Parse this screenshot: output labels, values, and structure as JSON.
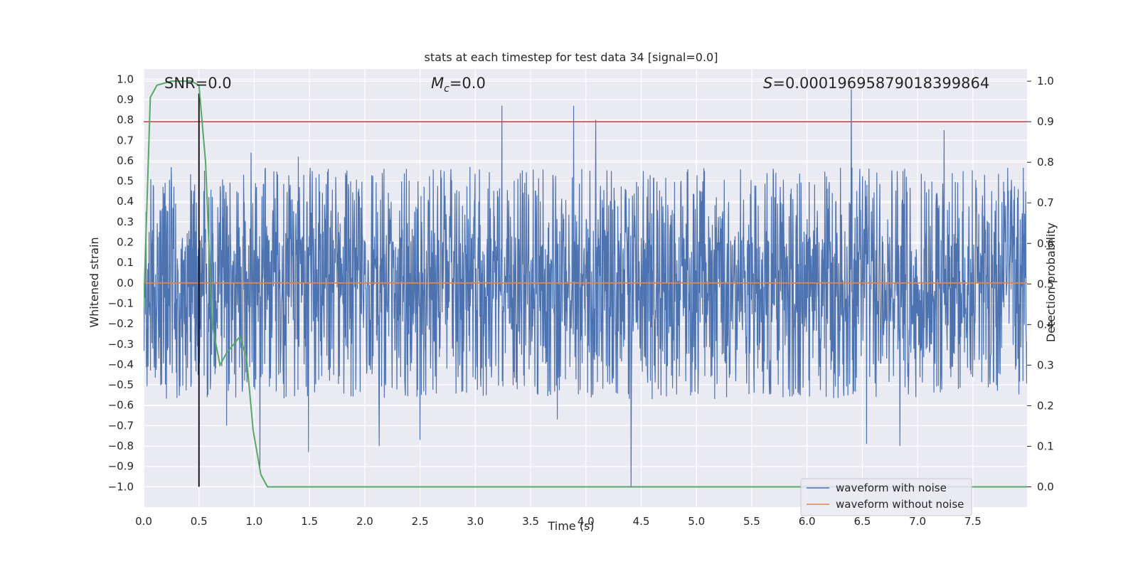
{
  "chart_data": {
    "type": "line",
    "title": "stats at each timestep for test data 34 [signal=0.0]",
    "xlabel": "Time (s)",
    "ylabel_left": "Whitened strain",
    "ylabel_right": "Detection probability",
    "xlim": [
      0.0,
      7.99
    ],
    "ylim_left": [
      -1.1,
      1.05
    ],
    "ylim_right": [
      -0.05,
      1.03
    ],
    "x_ticks": [
      "0.0",
      "0.5",
      "1.0",
      "1.5",
      "2.0",
      "2.5",
      "3.0",
      "3.5",
      "4.0",
      "4.5",
      "5.0",
      "5.5",
      "6.0",
      "6.5",
      "7.0",
      "7.5"
    ],
    "y_ticks_left": [
      "1.0",
      "0.9",
      "0.8",
      "0.7",
      "0.6",
      "0.5",
      "0.4",
      "0.3",
      "0.2",
      "0.1",
      "0.0",
      "−0.1",
      "−0.2",
      "−0.3",
      "−0.4",
      "−0.5",
      "−0.6",
      "−0.7",
      "−0.8",
      "−0.9",
      "−1.0"
    ],
    "y_ticks_right": [
      "0.0",
      "0.1",
      "0.2",
      "0.3",
      "0.4",
      "0.5",
      "0.6",
      "0.7",
      "0.8",
      "0.9",
      "1.0"
    ],
    "grid": true,
    "annotations": {
      "snr": "SNR=0.0",
      "mc_symbol": "M",
      "mc_sub": "c",
      "mc_value": "=0.0",
      "s_symbol": "S",
      "s_value": "=0.00019695879018399864"
    },
    "series": [
      {
        "name": "waveform with noise",
        "color": "#4c72b0",
        "axis": "left",
        "description": "dense noise trace, typical amplitude ±0.45, sampled to render",
        "x_range": [
          0.0,
          7.99
        ],
        "n_samples": 2600,
        "core_amplitude": 0.23,
        "envelope_amplitude": 0.45,
        "spikes": [
          {
            "x": 3.24,
            "y": 0.87
          },
          {
            "x": 3.89,
            "y": 0.87
          },
          {
            "x": 4.09,
            "y": 0.8
          },
          {
            "x": 6.4,
            "y": 0.95
          },
          {
            "x": 7.24,
            "y": 0.75
          },
          {
            "x": 4.41,
            "y": -1.0
          },
          {
            "x": 1.05,
            "y": -0.9
          },
          {
            "x": 1.49,
            "y": -0.83
          },
          {
            "x": 2.13,
            "y": -0.8
          },
          {
            "x": 2.5,
            "y": -0.77
          },
          {
            "x": 6.54,
            "y": -0.79
          },
          {
            "x": 6.84,
            "y": -0.8
          },
          {
            "x": 0.75,
            "y": -0.7
          },
          {
            "x": 3.74,
            "y": -0.67
          },
          {
            "x": 1.4,
            "y": 0.62
          },
          {
            "x": 0.97,
            "y": 0.64
          }
        ]
      },
      {
        "name": "waveform without noise",
        "color": "#dd8452",
        "axis": "left",
        "x": [
          0.0,
          7.99
        ],
        "y": [
          0.0,
          0.0
        ]
      },
      {
        "name": "detection probability",
        "color": "#55a868",
        "axis": "right",
        "x": [
          0.0,
          0.06,
          0.12,
          0.25,
          0.37,
          0.43,
          0.5,
          0.56,
          0.62,
          0.69,
          0.75,
          0.81,
          0.87,
          0.93,
          0.99,
          1.06,
          1.12,
          1.18,
          1.5,
          2.0,
          3.0,
          4.0,
          5.0,
          6.0,
          7.0,
          7.99
        ],
        "y": [
          0.44,
          0.96,
          0.99,
          1.0,
          1.0,
          1.0,
          0.99,
          0.8,
          0.4,
          0.3,
          0.33,
          0.35,
          0.37,
          0.32,
          0.14,
          0.03,
          0.0,
          0.0,
          0.0,
          0.0,
          0.0,
          0.0,
          0.0,
          0.0,
          0.0,
          0.0
        ]
      }
    ],
    "reference_lines": [
      {
        "name": "threshold-line",
        "axis": "right",
        "orientation": "horizontal",
        "value": 0.9,
        "color": "#c44e52"
      },
      {
        "name": "event-marker-line",
        "axis": "left",
        "orientation": "vertical",
        "value": 0.5,
        "y_range": [
          -1.0,
          0.93
        ],
        "color": "#000000"
      }
    ],
    "legend": {
      "position": "lower-right",
      "entries": [
        {
          "label": "waveform with noise",
          "color": "#4c72b0"
        },
        {
          "label": "waveform without noise",
          "color": "#dd8452"
        }
      ]
    }
  }
}
